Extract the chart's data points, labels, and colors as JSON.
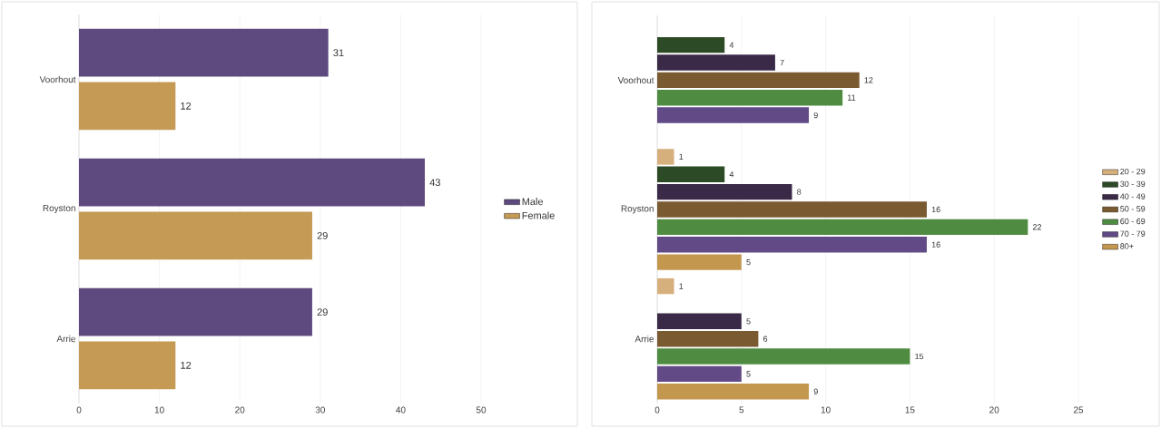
{
  "chart_data": [
    {
      "type": "bar",
      "orientation": "horizontal",
      "categories": [
        "Voorhout",
        "Royston",
        "Arrie"
      ],
      "series": [
        {
          "name": "Male",
          "color": "#5f4a80",
          "values": [
            31,
            43,
            29
          ]
        },
        {
          "name": "Female",
          "color": "#c49a55",
          "values": [
            12,
            29,
            12
          ]
        }
      ],
      "xlim": [
        0,
        50
      ],
      "xticks": [
        0,
        10,
        20,
        30,
        40,
        50
      ],
      "grid": "x",
      "legend": "right",
      "data_labels": true
    },
    {
      "type": "bar",
      "orientation": "horizontal",
      "categories": [
        "Voorhout",
        "Royston",
        "Arrie"
      ],
      "series": [
        {
          "name": "20 - 29",
          "color": "#d6b07c",
          "values": [
            null,
            1,
            1
          ]
        },
        {
          "name": "30 - 39",
          "color": "#2d4a27",
          "values": [
            4,
            4,
            null
          ]
        },
        {
          "name": "40 - 49",
          "color": "#3a2a48",
          "values": [
            7,
            8,
            5
          ]
        },
        {
          "name": "50 - 59",
          "color": "#7a5a30",
          "values": [
            12,
            16,
            6
          ]
        },
        {
          "name": "60 - 69",
          "color": "#4f8c42",
          "values": [
            11,
            22,
            15
          ]
        },
        {
          "name": "70 - 79",
          "color": "#614a85",
          "values": [
            9,
            16,
            5
          ]
        },
        {
          "name": "80+",
          "color": "#c4974f",
          "values": [
            null,
            5,
            9
          ]
        }
      ],
      "xlim": [
        0,
        25
      ],
      "xticks": [
        0,
        5,
        10,
        15,
        20,
        25
      ],
      "grid": "x",
      "legend": "right",
      "data_labels": true
    }
  ]
}
